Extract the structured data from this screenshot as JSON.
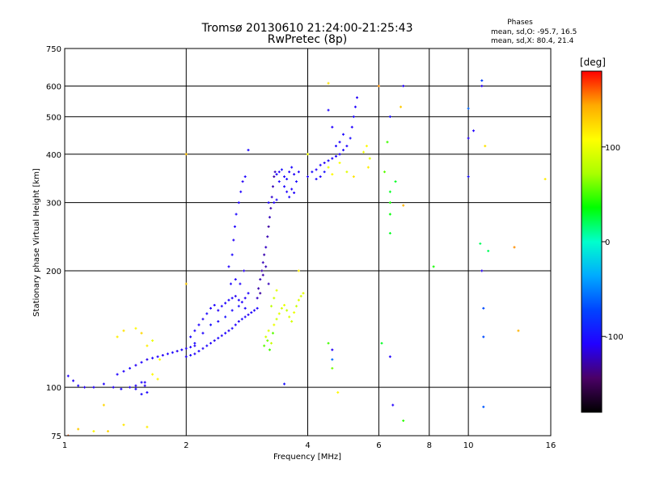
{
  "chart_data": {
    "type": "scatter",
    "title": "Tromsø 20130610 21:24:00-21:25:43",
    "subtitle": "RwPretec (8p)",
    "xlabel": "Frequency [MHz]",
    "ylabel": "Stationary phase Virtual Height [km]",
    "x_scale": "log",
    "y_scale": "log",
    "xlim": [
      1,
      16
    ],
    "ylim": [
      75,
      750
    ],
    "x_ticks": [
      1,
      2,
      4,
      6,
      8,
      10,
      16
    ],
    "y_ticks": [
      75,
      100,
      200,
      300,
      400,
      500,
      600,
      750
    ],
    "grid": true,
    "phase_box": {
      "heading": "Phases",
      "line1": "mean, sd,O: -95.7, 16.5",
      "line2": "mean, sd,X: 80.4, 21.4"
    },
    "colorbar": {
      "label": "[deg]",
      "range": [
        -180,
        180
      ],
      "ticks": [
        100,
        0,
        -100
      ],
      "colors": [
        "#000000",
        "#4a0066",
        "#2200ff",
        "#0044ff",
        "#00aaff",
        "#00ffcc",
        "#00ff00",
        "#aaff00",
        "#ffff00",
        "#ffaa00",
        "#ff0000"
      ]
    },
    "series": [
      {
        "points": [
          [
            1.02,
            107,
            -108
          ],
          [
            1.05,
            104,
            -110
          ],
          [
            1.08,
            101,
            -105
          ],
          [
            1.12,
            100,
            -112
          ],
          [
            1.18,
            100,
            -108
          ],
          [
            1.25,
            102,
            -106
          ],
          [
            1.32,
            100,
            -110
          ],
          [
            1.38,
            99,
            -104
          ],
          [
            1.45,
            100,
            -112
          ],
          [
            1.5,
            101,
            -108
          ],
          [
            1.55,
            103,
            -105
          ],
          [
            1.58,
            101,
            -110
          ],
          [
            1.35,
            108,
            -106
          ],
          [
            1.4,
            110,
            -109
          ],
          [
            1.45,
            112,
            -104
          ],
          [
            1.5,
            114,
            -110
          ],
          [
            1.55,
            116,
            -106
          ],
          [
            1.6,
            118,
            -112
          ],
          [
            1.65,
            119,
            -105
          ],
          [
            1.7,
            120,
            -108
          ],
          [
            1.75,
            121,
            -110
          ],
          [
            1.8,
            122,
            -107
          ],
          [
            1.85,
            123,
            -103
          ],
          [
            1.9,
            124,
            -111
          ],
          [
            1.95,
            125,
            -106
          ],
          [
            2.0,
            126,
            -108
          ],
          [
            2.05,
            127,
            -105
          ],
          [
            2.1,
            128,
            -110
          ],
          [
            2.0,
            120,
            -107
          ],
          [
            2.05,
            121,
            -104
          ],
          [
            2.1,
            122,
            -109
          ],
          [
            2.15,
            124,
            -106
          ],
          [
            2.2,
            126,
            -110
          ],
          [
            2.25,
            128,
            -105
          ],
          [
            2.3,
            130,
            -108
          ],
          [
            2.35,
            132,
            -112
          ],
          [
            2.4,
            134,
            -104
          ],
          [
            2.45,
            136,
            -109
          ],
          [
            2.5,
            138,
            -106
          ],
          [
            2.55,
            140,
            -111
          ],
          [
            2.6,
            142,
            -105
          ],
          [
            2.65,
            145,
            -108
          ],
          [
            2.7,
            148,
            -110
          ],
          [
            2.75,
            150,
            -103
          ],
          [
            2.8,
            152,
            -107
          ],
          [
            2.85,
            154,
            -111
          ],
          [
            2.9,
            156,
            -106
          ],
          [
            2.95,
            158,
            -109
          ],
          [
            3.0,
            160,
            -105
          ],
          [
            2.05,
            135,
            -104
          ],
          [
            2.1,
            140,
            -108
          ],
          [
            2.15,
            145,
            -106
          ],
          [
            2.2,
            150,
            -111
          ],
          [
            2.25,
            155,
            -103
          ],
          [
            2.3,
            160,
            -108
          ],
          [
            2.35,
            163,
            -105
          ],
          [
            2.4,
            158,
            -110
          ],
          [
            2.45,
            162,
            -106
          ],
          [
            2.5,
            165,
            -109
          ],
          [
            2.55,
            168,
            -104
          ],
          [
            2.6,
            170,
            -107
          ],
          [
            2.65,
            172,
            -112
          ],
          [
            2.7,
            168,
            -105
          ],
          [
            2.75,
            166,
            -108
          ],
          [
            2.8,
            170,
            -110
          ],
          [
            2.85,
            175,
            -106
          ],
          [
            2.1,
            130,
            -102
          ],
          [
            2.2,
            138,
            -106
          ],
          [
            2.3,
            145,
            -100
          ],
          [
            2.4,
            148,
            -104
          ],
          [
            2.5,
            152,
            -98
          ],
          [
            2.6,
            158,
            -103
          ],
          [
            2.7,
            162,
            -99
          ],
          [
            2.8,
            160,
            -104
          ],
          [
            2.55,
            205,
            -108
          ],
          [
            2.6,
            220,
            -104
          ],
          [
            2.62,
            240,
            -110
          ],
          [
            2.64,
            260,
            -106
          ],
          [
            2.66,
            280,
            -103
          ],
          [
            2.7,
            300,
            -108
          ],
          [
            2.73,
            320,
            -106
          ],
          [
            2.76,
            340,
            -110
          ],
          [
            2.8,
            350,
            -105
          ],
          [
            2.85,
            410,
            -104
          ],
          [
            2.78,
            200,
            -112
          ],
          [
            2.72,
            185,
            -107
          ],
          [
            2.65,
            190,
            -109
          ],
          [
            2.58,
            185,
            -105
          ],
          [
            3.0,
            170,
            -122
          ],
          [
            3.02,
            180,
            -128
          ],
          [
            3.05,
            190,
            -125
          ],
          [
            3.08,
            200,
            -130
          ],
          [
            3.1,
            210,
            -124
          ],
          [
            3.12,
            220,
            -127
          ],
          [
            3.15,
            230,
            -122
          ],
          [
            3.18,
            245,
            -126
          ],
          [
            3.2,
            260,
            -130
          ],
          [
            3.22,
            275,
            -124
          ],
          [
            3.24,
            290,
            -127
          ],
          [
            3.26,
            310,
            -120
          ],
          [
            3.28,
            330,
            -125
          ],
          [
            3.3,
            350,
            -128
          ],
          [
            3.32,
            360,
            -122
          ],
          [
            3.05,
            175,
            -130
          ],
          [
            3.1,
            195,
            -128
          ],
          [
            3.15,
            205,
            -126
          ],
          [
            3.2,
            185,
            -124
          ],
          [
            3.35,
            355,
            -104
          ],
          [
            3.4,
            360,
            -108
          ],
          [
            3.45,
            365,
            -100
          ],
          [
            3.5,
            350,
            -106
          ],
          [
            3.55,
            345,
            -102
          ],
          [
            3.6,
            360,
            -108
          ],
          [
            3.65,
            370,
            -104
          ],
          [
            3.7,
            355,
            -110
          ],
          [
            3.75,
            340,
            -103
          ],
          [
            3.8,
            360,
            -107
          ],
          [
            3.5,
            330,
            -104
          ],
          [
            3.55,
            320,
            -108
          ],
          [
            3.6,
            310,
            -102
          ],
          [
            3.65,
            325,
            -106
          ],
          [
            3.7,
            318,
            -109
          ],
          [
            3.4,
            340,
            -105
          ],
          [
            3.3,
            300,
            -108
          ],
          [
            3.35,
            305,
            -104
          ],
          [
            3.2,
            300,
            -106
          ],
          [
            4.0,
            350,
            -106
          ],
          [
            4.1,
            360,
            -102
          ],
          [
            4.2,
            365,
            -108
          ],
          [
            4.3,
            375,
            -104
          ],
          [
            4.4,
            380,
            -110
          ],
          [
            4.5,
            385,
            -103
          ],
          [
            4.6,
            390,
            -107
          ],
          [
            4.7,
            395,
            -105
          ],
          [
            4.8,
            400,
            -109
          ],
          [
            4.9,
            410,
            -104
          ],
          [
            5.0,
            420,
            -106
          ],
          [
            5.1,
            440,
            -102
          ],
          [
            5.15,
            470,
            -108
          ],
          [
            5.2,
            500,
            -104
          ],
          [
            5.25,
            530,
            -106
          ],
          [
            5.3,
            560,
            -110
          ],
          [
            4.7,
            420,
            -104
          ],
          [
            4.8,
            430,
            -107
          ],
          [
            4.9,
            450,
            -103
          ],
          [
            4.6,
            470,
            -108
          ],
          [
            4.5,
            520,
            -105
          ],
          [
            4.4,
            360,
            -100
          ],
          [
            4.3,
            350,
            -106
          ],
          [
            4.2,
            345,
            -104
          ],
          [
            1.5,
            99,
            -104
          ],
          [
            1.55,
            96,
            -102
          ],
          [
            1.6,
            97,
            -106
          ],
          [
            1.58,
            103,
            -108
          ],
          [
            6.4,
            500,
            -100
          ],
          [
            6.9,
            600,
            -108
          ],
          [
            10.0,
            525,
            -60
          ],
          [
            10.0,
            440,
            -110
          ],
          [
            10.3,
            460,
            -108
          ],
          [
            10.8,
            600,
            -112
          ],
          [
            10.8,
            620,
            -75
          ],
          [
            10.8,
            200,
            -112
          ],
          [
            10.9,
            160,
            -70
          ],
          [
            10.9,
            135,
            -70
          ],
          [
            10.9,
            89,
            -65
          ],
          [
            10.0,
            350,
            -100
          ],
          [
            6.5,
            90,
            -108
          ],
          [
            4.6,
            125,
            -110
          ],
          [
            4.6,
            118,
            -60
          ],
          [
            3.5,
            102,
            -100
          ],
          [
            6.4,
            120,
            -108
          ]
        ]
      },
      {
        "points": [
          [
            3.15,
            135,
            90
          ],
          [
            3.2,
            140,
            95
          ],
          [
            3.25,
            130,
            85
          ],
          [
            3.3,
            145,
            100
          ],
          [
            3.35,
            150,
            88
          ],
          [
            3.4,
            155,
            96
          ],
          [
            3.45,
            160,
            92
          ],
          [
            3.5,
            163,
            98
          ],
          [
            3.55,
            158,
            84
          ],
          [
            3.6,
            152,
            94
          ],
          [
            3.65,
            148,
            90
          ],
          [
            3.7,
            156,
            100
          ],
          [
            3.75,
            162,
            86
          ],
          [
            3.8,
            168,
            95
          ],
          [
            3.85,
            172,
            91
          ],
          [
            3.9,
            175,
            97
          ],
          [
            3.25,
            162,
            80
          ],
          [
            3.3,
            170,
            88
          ],
          [
            3.35,
            178,
            96
          ],
          [
            3.12,
            128,
            55
          ],
          [
            3.18,
            132,
            60
          ],
          [
            3.22,
            125,
            50
          ],
          [
            3.28,
            138,
            55
          ],
          [
            4.5,
            370,
            100
          ],
          [
            4.6,
            355,
            110
          ],
          [
            4.8,
            380,
            105
          ],
          [
            5.0,
            360,
            95
          ],
          [
            5.5,
            405,
            100
          ],
          [
            5.6,
            420,
            110
          ],
          [
            5.7,
            390,
            96
          ],
          [
            5.65,
            370,
            115
          ],
          [
            5.2,
            350,
            120
          ],
          [
            4.5,
            610,
            120
          ],
          [
            4.0,
            400,
            100
          ],
          [
            1.35,
            135,
            115
          ],
          [
            1.4,
            140,
            120
          ],
          [
            1.5,
            142,
            110
          ],
          [
            1.55,
            138,
            125
          ],
          [
            1.6,
            128,
            115
          ],
          [
            1.65,
            132,
            100
          ],
          [
            1.72,
            118,
            105
          ],
          [
            1.65,
            108,
            110
          ],
          [
            1.7,
            105,
            112
          ],
          [
            1.02,
            75,
            160
          ],
          [
            1.08,
            78,
            130
          ],
          [
            1.18,
            77,
            110
          ],
          [
            1.28,
            77,
            125
          ],
          [
            1.4,
            80,
            118
          ],
          [
            1.6,
            79,
            115
          ],
          [
            1.25,
            90,
            125
          ],
          [
            2.0,
            185,
            130
          ],
          [
            2.0,
            400,
            135
          ],
          [
            3.8,
            200,
            115
          ],
          [
            6.4,
            250,
            30
          ],
          [
            6.4,
            280,
            35
          ],
          [
            6.4,
            300,
            40
          ],
          [
            6.4,
            320,
            30
          ],
          [
            6.3,
            430,
            50
          ],
          [
            6.6,
            340,
            30
          ],
          [
            6.2,
            360,
            55
          ],
          [
            6.0,
            600,
            150
          ],
          [
            6.1,
            130,
            30
          ],
          [
            6.9,
            82,
            45
          ],
          [
            6.9,
            295,
            140
          ],
          [
            8.2,
            205,
            40
          ],
          [
            11.0,
            420,
            120
          ],
          [
            13.0,
            230,
            150
          ],
          [
            13.3,
            140,
            140
          ],
          [
            15.5,
            345,
            115
          ],
          [
            10.7,
            235,
            20
          ],
          [
            11.2,
            225,
            20
          ],
          [
            4.5,
            130,
            50
          ],
          [
            4.6,
            112,
            60
          ],
          [
            6.8,
            530,
            130
          ],
          [
            4.75,
            97,
            110
          ]
        ]
      }
    ]
  }
}
